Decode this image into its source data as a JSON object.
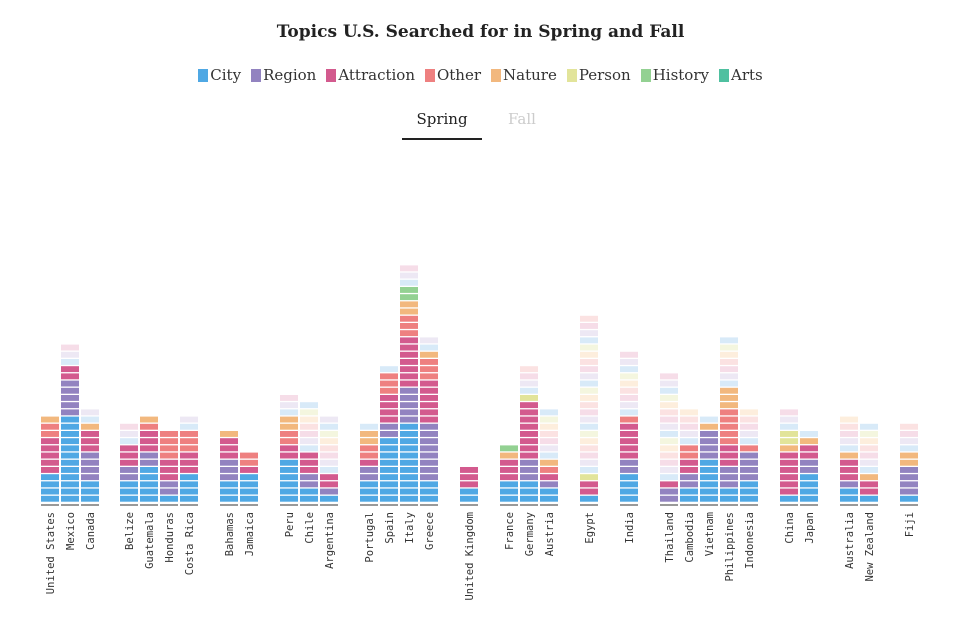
{
  "chart_data": {
    "type": "bar",
    "stacked": true,
    "title": "Topics U.S. Searched for in Spring and Fall",
    "legend": [
      "City",
      "Region",
      "Attraction",
      "Other",
      "Nature",
      "Person",
      "History",
      "Arts"
    ],
    "legend_placement": "top-center",
    "colors": {
      "City": "#4fa8e4",
      "Region": "#9283c0",
      "Attraction": "#d35a8e",
      "Other": "#ee8080",
      "Nature": "#f2b87e",
      "Person": "#e2e49a",
      "History": "#93d192",
      "Arts": "#4fc0a0"
    },
    "tabs": [
      "Spring",
      "Fall"
    ],
    "active_tab": "Spring",
    "segment_unit": 1,
    "categories": [
      "United States",
      "Mexico",
      "Canada",
      "Belize",
      "Guatemala",
      "Honduras",
      "Costa Rica",
      "Bahamas",
      "Jamaica",
      "Peru",
      "Chile",
      "Argentina",
      "Portugal",
      "Spain",
      "Italy",
      "Greece",
      "United Kingdom",
      "France",
      "Germany",
      "Austria",
      "Egypt",
      "India",
      "Thailand",
      "Cambodia",
      "Vietnam",
      "Philippines",
      "Indonesia",
      "China",
      "Japan",
      "Australia",
      "New Zealand",
      "Fiji"
    ],
    "series": [
      {
        "name": "City",
        "values": [
          4,
          12,
          3,
          3,
          5,
          1,
          4,
          3,
          4,
          6,
          2,
          1,
          3,
          9,
          11,
          3,
          2,
          3,
          3,
          2,
          1,
          4,
          0,
          2,
          6,
          2,
          3,
          1,
          4,
          2,
          1,
          1
        ]
      },
      {
        "name": "Region",
        "values": [
          0,
          5,
          4,
          2,
          2,
          2,
          0,
          3,
          0,
          0,
          2,
          1,
          2,
          2,
          5,
          8,
          0,
          0,
          3,
          1,
          0,
          2,
          2,
          2,
          4,
          3,
          4,
          0,
          2,
          1,
          0,
          4
        ]
      },
      {
        "name": "Attraction",
        "values": [
          5,
          2,
          3,
          3,
          3,
          3,
          3,
          3,
          1,
          2,
          3,
          2,
          1,
          4,
          7,
          6,
          3,
          3,
          8,
          1,
          2,
          5,
          1,
          2,
          0,
          3,
          0,
          6,
          2,
          3,
          2,
          0
        ]
      },
      {
        "name": "Other",
        "values": [
          2,
          0,
          0,
          0,
          1,
          4,
          3,
          0,
          2,
          2,
          0,
          0,
          2,
          3,
          3,
          3,
          0,
          0,
          0,
          1,
          0,
          1,
          0,
          2,
          0,
          5,
          1,
          0,
          0,
          0,
          0,
          0
        ]
      },
      {
        "name": "Nature",
        "values": [
          1,
          0,
          1,
          0,
          1,
          0,
          0,
          1,
          0,
          2,
          0,
          0,
          2,
          0,
          2,
          1,
          0,
          1,
          0,
          1,
          0,
          0,
          0,
          0,
          1,
          3,
          0,
          1,
          1,
          1,
          1,
          2
        ]
      },
      {
        "name": "Person",
        "values": [
          0,
          0,
          0,
          0,
          0,
          0,
          0,
          0,
          0,
          0,
          0,
          0,
          0,
          0,
          0,
          0,
          0,
          0,
          1,
          0,
          1,
          0,
          0,
          0,
          0,
          0,
          0,
          2,
          0,
          0,
          0,
          0
        ]
      },
      {
        "name": "History",
        "values": [
          0,
          0,
          0,
          0,
          0,
          0,
          0,
          0,
          0,
          0,
          0,
          0,
          0,
          0,
          2,
          0,
          0,
          1,
          0,
          0,
          0,
          0,
          0,
          0,
          0,
          0,
          0,
          0,
          0,
          0,
          0,
          0
        ]
      },
      {
        "name": "Arts",
        "values": [
          0,
          0,
          0,
          0,
          0,
          0,
          0,
          0,
          0,
          0,
          0,
          0,
          0,
          0,
          0,
          0,
          0,
          0,
          0,
          0,
          0,
          0,
          0,
          0,
          0,
          0,
          0,
          0,
          0,
          0,
          0,
          0
        ]
      },
      {
        "name": "Faded",
        "values": [
          0,
          3,
          2,
          3,
          0,
          0,
          2,
          0,
          0,
          3,
          7,
          8,
          1,
          1,
          3,
          2,
          0,
          0,
          4,
          7,
          22,
          9,
          15,
          5,
          1,
          7,
          5,
          3,
          1,
          5,
          7,
          4
        ]
      }
    ]
  }
}
